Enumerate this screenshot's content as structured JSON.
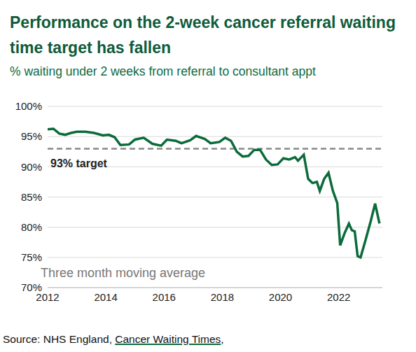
{
  "chart_data": {
    "type": "line",
    "title": "Performance on the 2-week cancer referral waiting time target has fallen",
    "subtitle": "% waiting under 2 weeks from referral to consultant appt",
    "annotation": "Three month moving average",
    "x": [
      2012.0,
      2012.2,
      2012.4,
      2012.6,
      2012.8,
      2013.0,
      2013.3,
      2013.6,
      2013.9,
      2014.1,
      2014.3,
      2014.5,
      2014.8,
      2015.0,
      2015.3,
      2015.6,
      2015.9,
      2016.1,
      2016.4,
      2016.6,
      2016.9,
      2017.1,
      2017.4,
      2017.6,
      2017.9,
      2018.1,
      2018.3,
      2018.5,
      2018.7,
      2018.9,
      2019.1,
      2019.3,
      2019.5,
      2019.7,
      2019.9,
      2020.1,
      2020.3,
      2020.5,
      2020.6,
      2020.8,
      2020.95,
      2021.1,
      2021.25,
      2021.35,
      2021.5,
      2021.65,
      2021.8,
      2021.95,
      2022.05,
      2022.2,
      2022.35,
      2022.45,
      2022.55,
      2022.65,
      2022.75,
      2022.9,
      2023.1,
      2023.25,
      2023.4
    ],
    "values": [
      96.2,
      96.3,
      95.5,
      95.3,
      95.6,
      95.8,
      95.8,
      95.6,
      95.2,
      95.3,
      94.9,
      93.6,
      93.7,
      94.5,
      94.8,
      93.8,
      93.5,
      94.5,
      94.3,
      93.9,
      94.4,
      95.1,
      94.6,
      93.9,
      94.1,
      94.8,
      94.3,
      92.5,
      91.7,
      91.8,
      92.8,
      92.8,
      91.2,
      90.3,
      90.4,
      91.4,
      91.2,
      91.6,
      91.0,
      92.0,
      88.0,
      87.3,
      87.5,
      86.0,
      88.0,
      89.0,
      86.0,
      84.0,
      77.0,
      79.0,
      80.6,
      79.5,
      79.3,
      75.2,
      75.0,
      77.5,
      81.0,
      83.9,
      80.6
    ],
    "color": "#0b6b3a",
    "xlim": [
      2012,
      2023.5
    ],
    "xticks": [
      2012,
      2014,
      2016,
      2018,
      2020,
      2022
    ],
    "ylim": [
      70,
      100
    ],
    "yticks": [
      {
        "value": 70,
        "label": "70%"
      },
      {
        "value": 75,
        "label": "75%"
      },
      {
        "value": 80,
        "label": "80%"
      },
      {
        "value": 85,
        "label": "85%"
      },
      {
        "value": 90,
        "label": "90%"
      },
      {
        "value": 95,
        "label": "95%"
      },
      {
        "value": 100,
        "label": "100%"
      }
    ],
    "grid": true,
    "target": {
      "value": 93,
      "label": "93% target",
      "line_style": "dashed",
      "color": "#888888"
    },
    "source": {
      "prefix": "Source: NHS England, ",
      "link": "Cancer Waiting Times",
      "suffix": ","
    }
  }
}
